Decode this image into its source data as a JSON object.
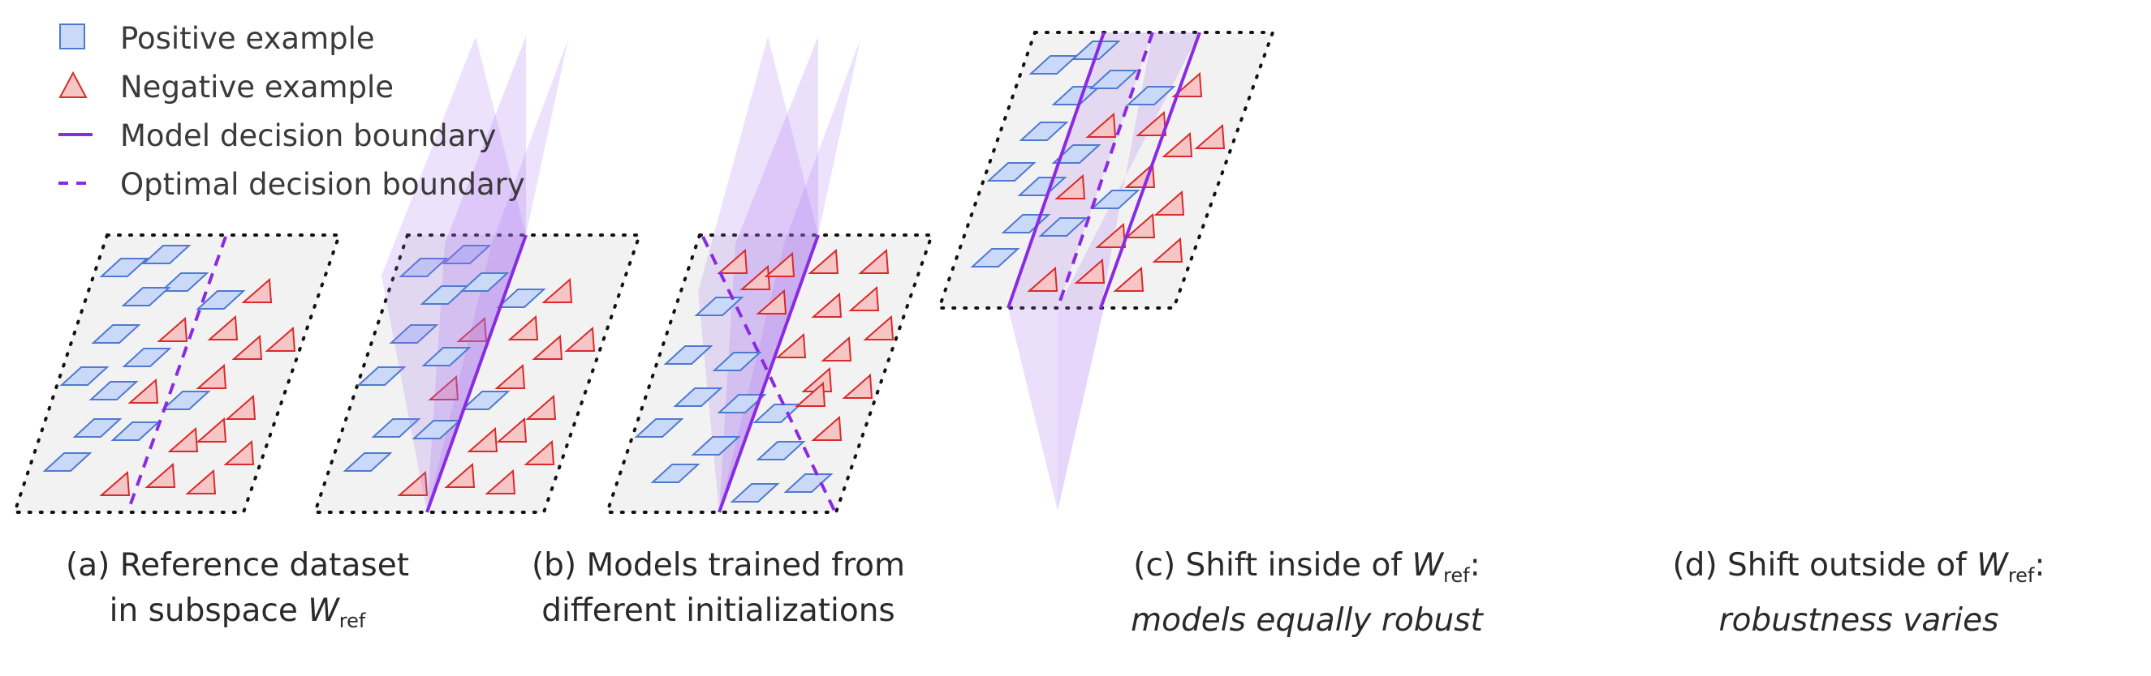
{
  "legend": {
    "positive": "Positive example",
    "negative": "Negative example",
    "model_boundary": "Model decision boundary",
    "optimal_boundary": "Optimal decision boundary"
  },
  "captions": {
    "a": {
      "line1": "(a) Reference dataset",
      "line2_prefix": "in subspace ",
      "var": "W",
      "sub": "ref"
    },
    "b": {
      "line1": "(b) Models trained from",
      "line2": "different initializations"
    },
    "c": {
      "line1_prefix": "(c) Shift inside of ",
      "var": "W",
      "sub": "ref",
      "suffix": ":",
      "line2": "models equally robust"
    },
    "d": {
      "line1_prefix": "(d) Shift outside of ",
      "var": "W",
      "sub": "ref",
      "suffix": ":",
      "line2": "robustness varies"
    }
  },
  "colors": {
    "positive_fill": "#c9d9f7",
    "positive_stroke": "#4f7ad1",
    "negative_fill": "#f6c6c6",
    "negative_stroke": "#d92b2b",
    "boundary": "#8a2be2",
    "plane": "#f2f2f2",
    "fan": "#a66cf0"
  }
}
